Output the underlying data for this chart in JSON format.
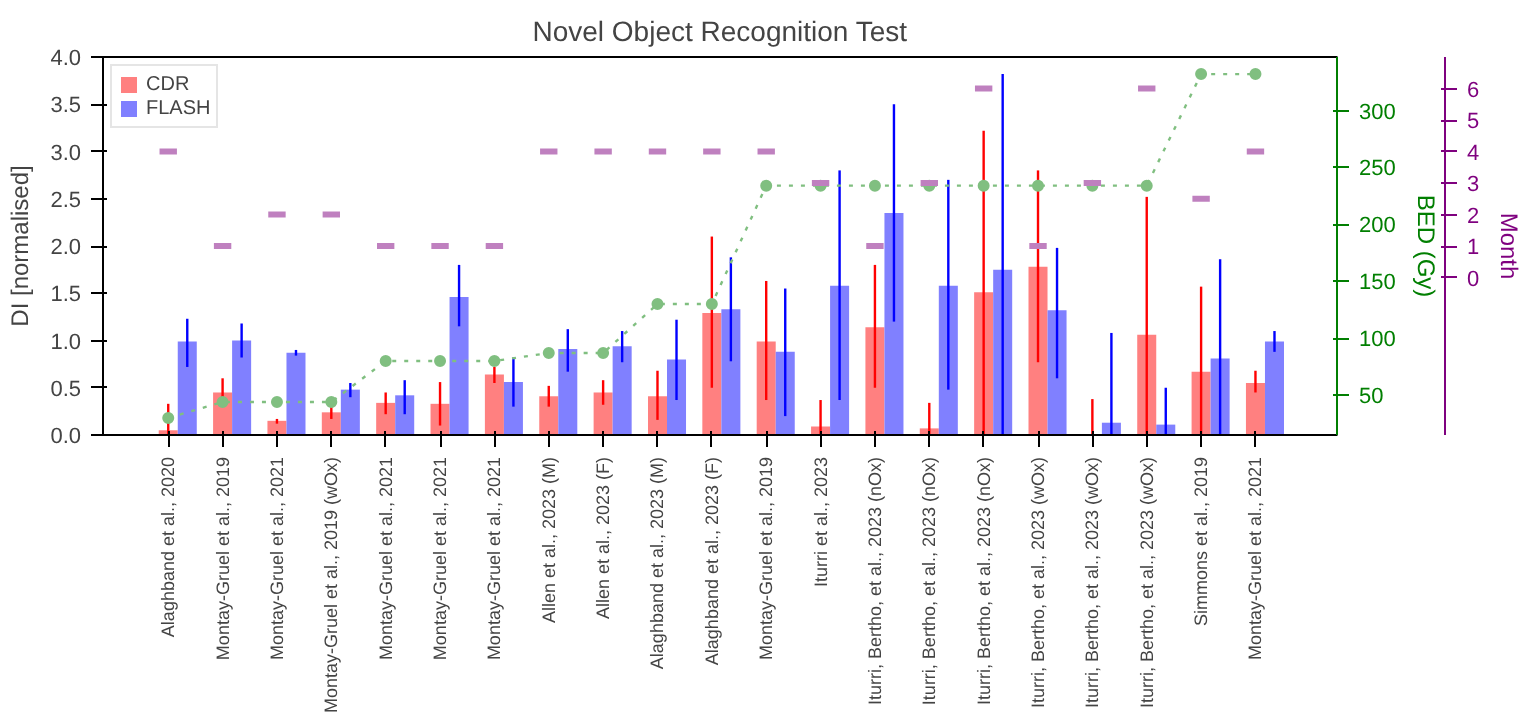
{
  "chart_data": {
    "type": "bar",
    "title": "Novel Object Recognition Test",
    "ylabel": "DI [normalised]",
    "y2label": "BED (Gy)",
    "y3label": "Month",
    "categories": [
      "Alaghband et al., 2020",
      "Montay-Gruel et al., 2019",
      "Montay-Gruel et al., 2021",
      "Montay-Gruel et al., 2019 (wOx)",
      "Montay-Gruel et al., 2021",
      "Montay-Gruel et al., 2021",
      "Montay-Gruel et al., 2021",
      "Allen et al., 2023 (M)",
      "Allen et al., 2023 (F)",
      "Alaghband et al., 2023 (M)",
      "Alaghband et al., 2023 (F)",
      "Montay-Gruel et al., 2019",
      "Iturri et al., 2023",
      "Iturri, Bertho, et al., 2023 (nOx)",
      "Iturri, Bertho, et al., 2023 (nOx)",
      "Iturri, Bertho, et al., 2023 (nOx)",
      "Iturri, Bertho, et al., 2023 (wOx)",
      "Iturri, Bertho, et al., 2023 (wOx)",
      "Iturri, Bertho, et al., 2023 (wOx)",
      "Simmons et al., 2019",
      "Montay-Gruel et al., 2021"
    ],
    "series": [
      {
        "name": "CDR",
        "color": "#ff8080",
        "values": [
          0.05,
          0.45,
          0.15,
          0.24,
          0.34,
          0.33,
          0.64,
          0.41,
          0.45,
          0.41,
          1.29,
          0.99,
          0.09,
          1.14,
          0.07,
          1.51,
          1.78,
          0.0,
          1.06,
          0.67,
          0.55
        ],
        "errors": [
          [
            0,
            0.33
          ],
          [
            0.3,
            0.6
          ],
          [
            0.12,
            0.17
          ],
          [
            0.17,
            0.3
          ],
          [
            0.22,
            0.45
          ],
          [
            0.1,
            0.56
          ],
          [
            0.55,
            0.72
          ],
          [
            0.3,
            0.52
          ],
          [
            0.32,
            0.58
          ],
          [
            0.16,
            0.68
          ],
          [
            0.5,
            2.1
          ],
          [
            0.37,
            1.63
          ],
          [
            0,
            0.37
          ],
          [
            0.5,
            1.8
          ],
          [
            0,
            0.34
          ],
          [
            0,
            3.22
          ],
          [
            0.77,
            2.8
          ],
          [
            0,
            0.38
          ],
          [
            0,
            2.52
          ],
          [
            0,
            1.57
          ],
          [
            0.45,
            0.68
          ]
        ]
      },
      {
        "name": "FLASH",
        "color": "#8080ff",
        "values": [
          0.99,
          1.0,
          0.87,
          0.48,
          0.42,
          1.46,
          0.56,
          0.91,
          0.94,
          0.8,
          1.33,
          0.88,
          1.58,
          2.35,
          1.58,
          1.75,
          1.32,
          0.13,
          0.11,
          0.81,
          0.99
        ],
        "errors": [
          [
            0.72,
            1.23
          ],
          [
            0.82,
            1.18
          ],
          [
            0.84,
            0.9
          ],
          [
            0.4,
            0.55
          ],
          [
            0.22,
            0.58
          ],
          [
            1.15,
            1.8
          ],
          [
            0.3,
            0.82
          ],
          [
            0.67,
            1.12
          ],
          [
            0.77,
            1.1
          ],
          [
            0.37,
            1.22
          ],
          [
            0.78,
            1.88
          ],
          [
            0.2,
            1.55
          ],
          [
            0.37,
            2.8
          ],
          [
            1.2,
            3.5
          ],
          [
            0.48,
            2.7
          ],
          [
            0,
            3.82
          ],
          [
            0.6,
            1.98
          ],
          [
            0,
            1.08
          ],
          [
            0,
            0.5
          ],
          [
            0,
            1.86
          ],
          [
            0.88,
            1.1
          ]
        ]
      },
      {
        "type": "line",
        "axis": "y2",
        "color": "#80bf80",
        "marker": "circle",
        "line_style": "dotted",
        "values": [
          30,
          44,
          44,
          44,
          80,
          80,
          80,
          87,
          87,
          130,
          130,
          234,
          234,
          234,
          234,
          234,
          234,
          234,
          234,
          332,
          332
        ]
      },
      {
        "type": "scatter",
        "axis": "y3",
        "color": "#bf80bf",
        "values": [
          4,
          1,
          2,
          2,
          1,
          1,
          1,
          4,
          4,
          4,
          4,
          4,
          3,
          1,
          3,
          6,
          1,
          3,
          6,
          2.5,
          4
        ]
      }
    ],
    "ylim": [
      0,
      4
    ],
    "yticks": [
      {
        "value": 0,
        "label": "0.0"
      },
      {
        "value": 0.5,
        "label": "0.5"
      },
      {
        "value": 1,
        "label": "1.0"
      },
      {
        "value": 1.5,
        "label": "1.5"
      },
      {
        "value": 2,
        "label": "2.0"
      },
      {
        "value": 2.5,
        "label": "2.5"
      },
      {
        "value": 3,
        "label": "3.0"
      },
      {
        "value": 3.5,
        "label": "3.5"
      },
      {
        "value": 4,
        "label": "4.0"
      }
    ],
    "y2lim": [
      15,
      347
    ],
    "y2ticks": [
      50,
      100,
      150,
      200,
      250,
      300
    ],
    "y3lim": [
      -5,
      7
    ],
    "y3ticks": [
      0,
      1,
      2,
      3,
      4,
      5,
      6
    ],
    "legend": "top left",
    "grid": false
  }
}
